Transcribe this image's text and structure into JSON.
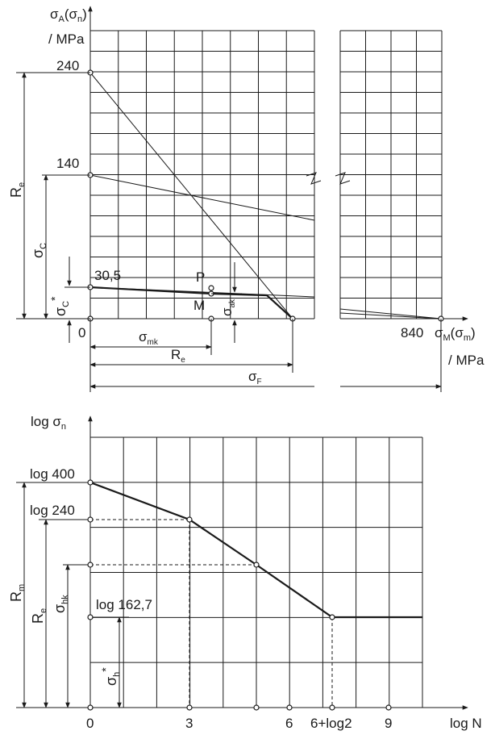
{
  "top_diagram": {
    "y_axis_label": "σA(σn)",
    "y_axis_label_main": "σ",
    "y_axis_label_sub": "A",
    "y_axis_label_paren": "(σ",
    "y_axis_label_paren_sub": "n",
    "y_axis_label_close": ")",
    "y_axis_unit": "/ MPa",
    "x_axis_label_main": "σ",
    "x_axis_label_sub": "M",
    "x_axis_label_paren": "(σ",
    "x_axis_label_paren_sub": "m",
    "x_axis_label_close": ")",
    "x_axis_unit": "/ MPa",
    "origin_label": "0",
    "y_values": {
      "max": "240",
      "mid": "140",
      "low": "30,5"
    },
    "x_end_value": "840",
    "point_labels": {
      "p": "P",
      "m": "M"
    },
    "dimension_labels": {
      "re_left_main": "R",
      "re_left_sub": "e",
      "sigma_c_main": "σ",
      "sigma_c_sub": "C",
      "sigma_c_star_main": "σ",
      "sigma_c_star_sub": "C",
      "sigma_c_star_sup": "*",
      "sigma_ak_main": "σ",
      "sigma_ak_sub": "ak",
      "sigma_mk_main": "σ",
      "sigma_mk_sub": "mk",
      "re_bottom_main": "R",
      "re_bottom_sub": "e",
      "sigma_f_main": "σ",
      "sigma_f_sub": "F"
    },
    "data": {
      "goodman_line_from_240": {
        "y_at_0": 240,
        "x_at_0": 480
      },
      "line_from_140": {
        "y_at_0": 140,
        "x_at_0": 840
      },
      "line_from_30_5": {
        "y_at_0": 30.5,
        "x_at_0": 840
      }
    }
  },
  "bottom_diagram": {
    "y_axis_label": "log σn",
    "y_axis_label_main": "log σ",
    "y_axis_label_sub": "n",
    "x_axis_label": "log N",
    "y_values": {
      "log400": "log 400",
      "log240": "log 240",
      "log162": "log 162,7"
    },
    "x_ticks": [
      "0",
      "3",
      "6",
      "6+log2",
      "9"
    ],
    "dimension_labels": {
      "rm_main": "R",
      "rm_sub": "m",
      "re_main": "R",
      "re_sub": "e",
      "sigma_hk_main": "σ",
      "sigma_hk_sub": "hk",
      "sigma_h_star_main": "σ",
      "sigma_h_star_sub": "h",
      "sigma_h_star_sup": "*"
    },
    "data": {
      "wohler_curve_logN": [
        0,
        3,
        5,
        6.301,
        10
      ],
      "wohler_curve_label": "log σ"
    }
  },
  "colors": {
    "ink": "#1a1a1a",
    "background": "#ffffff"
  }
}
